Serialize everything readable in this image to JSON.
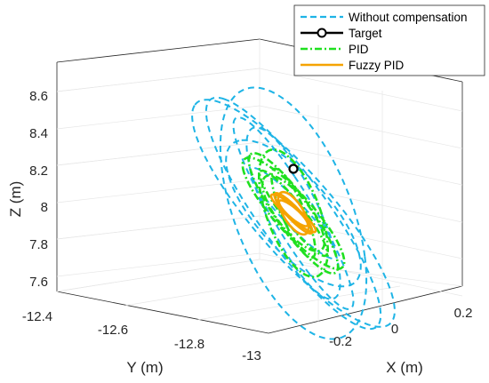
{
  "chart_data": {
    "type": "line",
    "projection": "3d",
    "title": "",
    "xlabel": "X (m)",
    "ylabel": "Y (m)",
    "zlabel": "Z (m)",
    "x_ticks": [
      "-0.2",
      "0",
      "0.2"
    ],
    "y_ticks": [
      "-12.4",
      "-12.6",
      "-12.8",
      "-13"
    ],
    "z_ticks": [
      "7.6",
      "7.8",
      "8",
      "8.2",
      "8.4",
      "8.6"
    ],
    "xlim": [
      -0.3,
      0.3
    ],
    "ylim": [
      -12.4,
      -13.05
    ],
    "zlim": [
      7.5,
      8.75
    ],
    "grid": true,
    "legend_position": "top-right",
    "target": {
      "x": 0,
      "y": -12.75,
      "z": 8.15
    },
    "series": [
      {
        "name": "Without compensation",
        "color": "#1eb4e6",
        "style": "dashed",
        "trajectory": "elliptic loops around target",
        "loops": [
          {
            "a": 0.17,
            "b": 0.03,
            "c": 0.55,
            "rot": -0.12,
            "phase": 0
          },
          {
            "a": 0.07,
            "b": 0.16,
            "c": 0.45,
            "rot": 0.9,
            "phase": 1.2
          },
          {
            "a": 0.14,
            "b": 0.1,
            "c": 0.48,
            "rot": -0.5,
            "phase": 2.1
          },
          {
            "a": 0.05,
            "b": 0.18,
            "c": 0.3,
            "rot": 1.6,
            "phase": 0.5
          },
          {
            "a": 0.12,
            "b": 0.06,
            "c": 0.38,
            "rot": 0.2,
            "phase": 3.0
          },
          {
            "a": 0.09,
            "b": 0.14,
            "c": 0.42,
            "rot": -1.1,
            "phase": 1.7
          },
          {
            "a": 0.04,
            "b": 0.2,
            "c": 0.22,
            "rot": 2.4,
            "phase": 0.9
          }
        ]
      },
      {
        "name": "Target",
        "color": "#000000",
        "style": "marker-circle"
      },
      {
        "name": "PID",
        "color": "#1fe01f",
        "style": "dash-dot",
        "loops": [
          {
            "a": 0.08,
            "b": 0.02,
            "c": 0.28,
            "rot": -0.1,
            "phase": 0.3
          },
          {
            "a": 0.04,
            "b": 0.08,
            "c": 0.22,
            "rot": 0.9,
            "phase": 1.5
          },
          {
            "a": 0.07,
            "b": 0.05,
            "c": 0.25,
            "rot": -0.6,
            "phase": 2.6
          },
          {
            "a": 0.03,
            "b": 0.09,
            "c": 0.16,
            "rot": 1.7,
            "phase": 0.8
          },
          {
            "a": 0.06,
            "b": 0.03,
            "c": 0.2,
            "rot": 0.3,
            "phase": 3.3
          },
          {
            "a": 0.05,
            "b": 0.07,
            "c": 0.18,
            "rot": -1.2,
            "phase": 2.0
          }
        ]
      },
      {
        "name": "Fuzzy PID",
        "color": "#f5a300",
        "style": "solid",
        "loops": [
          {
            "a": 0.035,
            "b": 0.01,
            "c": 0.09,
            "rot": -0.1,
            "phase": 0.4
          },
          {
            "a": 0.02,
            "b": 0.035,
            "c": 0.07,
            "rot": 0.9,
            "phase": 1.3
          },
          {
            "a": 0.03,
            "b": 0.02,
            "c": 0.08,
            "rot": -0.6,
            "phase": 2.2
          },
          {
            "a": 0.015,
            "b": 0.04,
            "c": 0.05,
            "rot": 1.7,
            "phase": 0.7
          }
        ]
      }
    ]
  }
}
